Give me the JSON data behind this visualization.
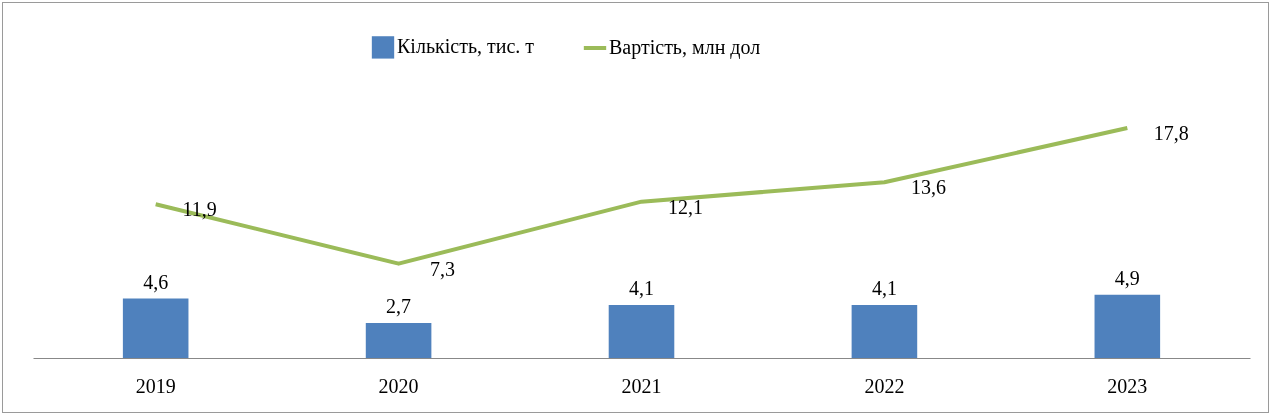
{
  "chart_data": {
    "type": "bar",
    "categories": [
      "2019",
      "2020",
      "2021",
      "2022",
      "2023"
    ],
    "series": [
      {
        "name": "Кількість, тис. т",
        "color": "#4f81bd",
        "values": [
          4.6,
          2.7,
          4.1,
          4.1,
          4.9
        ],
        "value_labels": [
          "4,6",
          "2,7",
          "4,1",
          "4,1",
          "4,9"
        ]
      },
      {
        "name": "Вартість, млн дол",
        "type": "line",
        "color": "#9bbb59",
        "values": [
          11.9,
          7.3,
          12.1,
          13.6,
          17.8
        ],
        "value_labels": [
          "11,9",
          "7,3",
          "12,1",
          "13,6",
          "17,8"
        ]
      }
    ],
    "legend": "top",
    "grid": false,
    "marker": "none"
  }
}
